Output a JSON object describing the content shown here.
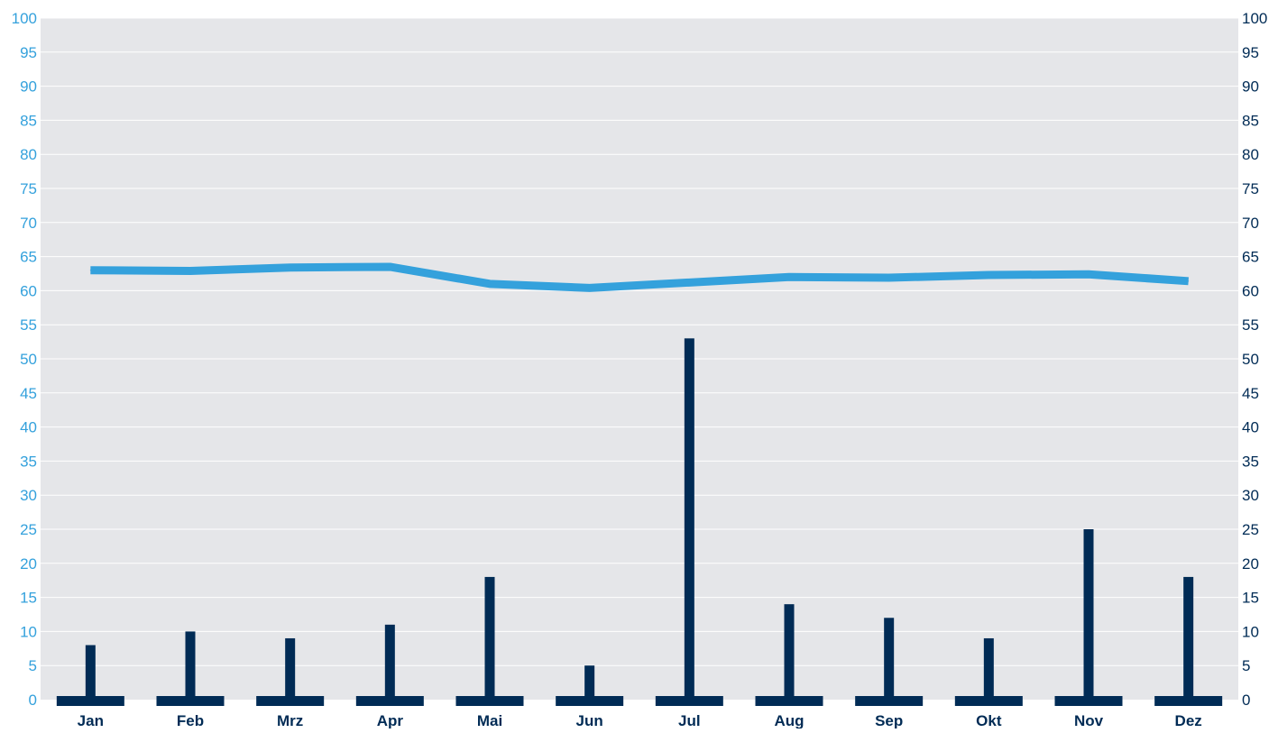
{
  "chart_data": {
    "type": "bar",
    "categories": [
      "Jan",
      "Feb",
      "Mrz",
      "Apr",
      "Mai",
      "Jun",
      "Jul",
      "Aug",
      "Sep",
      "Okt",
      "Nov",
      "Dez"
    ],
    "series": [
      {
        "type": "bar",
        "axis": "right",
        "color": "#002b55",
        "values": [
          8,
          10,
          9,
          11,
          18,
          5,
          53,
          14,
          12,
          9,
          25,
          18
        ]
      },
      {
        "type": "line",
        "axis": "left",
        "color": "#34a1dc",
        "values": [
          63,
          62.9,
          63.4,
          63.5,
          61,
          60.4,
          61.2,
          62,
          61.9,
          62.3,
          62.4,
          61.4
        ]
      }
    ],
    "ylim": [
      0,
      100
    ],
    "y2lim": [
      0,
      100
    ],
    "yticks": [
      "0",
      "5",
      "10",
      "15",
      "20",
      "25",
      "30",
      "35",
      "40",
      "45",
      "50",
      "55",
      "60",
      "65",
      "70",
      "75",
      "80",
      "85",
      "90",
      "95",
      "100"
    ],
    "grid": true,
    "legend": "none",
    "colors": {
      "plot_background": "#e5e6e9",
      "gridline": "#ffffff",
      "left_axis_text": "#34a1dc",
      "right_axis_text": "#002b55",
      "bar": "#002b55",
      "line": "#34a1dc",
      "category_text": "#002b55"
    }
  }
}
